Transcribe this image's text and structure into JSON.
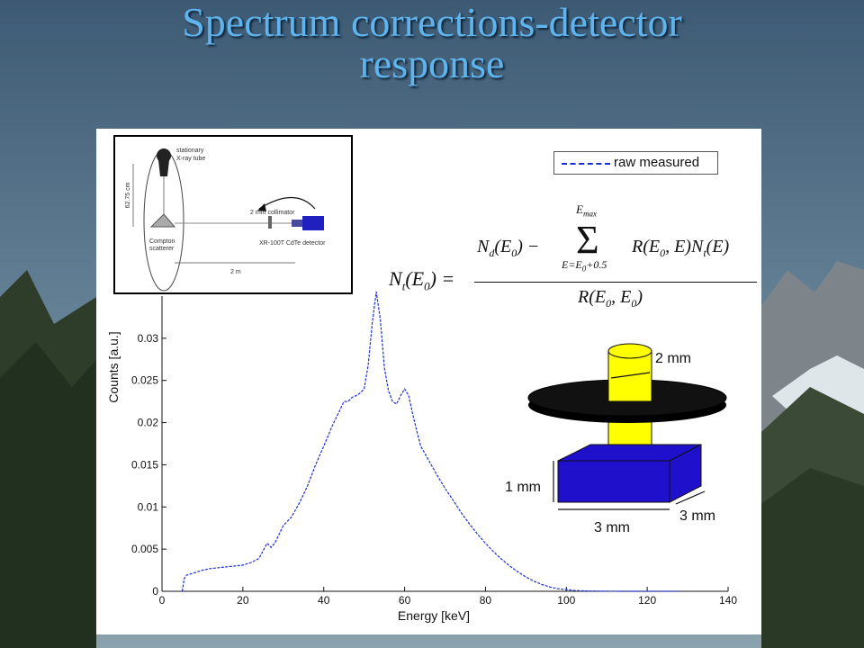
{
  "slide": {
    "title_line1": "Spectrum corrections-detector",
    "title_line2": "response"
  },
  "chart_data": {
    "type": "line",
    "xlabel": "Energy [keV]",
    "ylabel": "Counts [a.u.]",
    "xlim": [
      0,
      140
    ],
    "ylim": [
      0,
      0.035
    ],
    "xticks": [
      0,
      20,
      40,
      60,
      80,
      100,
      120,
      140
    ],
    "yticks": [
      0,
      0.005,
      0.01,
      0.015,
      0.02,
      0.025,
      0.03
    ],
    "legend": {
      "position": "top-right",
      "entries": [
        "raw measured"
      ]
    },
    "series": [
      {
        "name": "raw measured",
        "color": "#1a2fd6",
        "style": "dashed",
        "x": [
          5,
          5.5,
          6,
          8,
          10,
          12,
          14,
          16,
          18,
          20,
          22,
          24,
          25,
          26,
          27,
          28,
          29,
          30,
          32,
          34,
          36,
          38,
          40,
          42,
          44,
          45,
          46,
          47,
          48,
          49,
          50,
          51,
          52,
          53,
          54,
          55,
          56,
          57,
          58,
          59,
          60,
          61,
          62,
          63,
          64,
          66,
          68,
          70,
          72,
          74,
          76,
          78,
          80,
          82,
          84,
          86,
          88,
          90,
          92,
          94,
          96,
          98,
          100,
          102,
          104,
          106,
          108,
          110,
          115,
          120,
          128
        ],
        "y": [
          0,
          0.0015,
          0.0019,
          0.0022,
          0.0025,
          0.0027,
          0.0028,
          0.0029,
          0.003,
          0.0031,
          0.0034,
          0.0039,
          0.0048,
          0.0057,
          0.0052,
          0.0058,
          0.0068,
          0.0078,
          0.0088,
          0.0105,
          0.0125,
          0.015,
          0.0172,
          0.0195,
          0.0215,
          0.0225,
          0.0225,
          0.023,
          0.0232,
          0.0235,
          0.024,
          0.0268,
          0.0318,
          0.0355,
          0.0322,
          0.0265,
          0.0238,
          0.0225,
          0.0222,
          0.0232,
          0.024,
          0.0232,
          0.021,
          0.019,
          0.0172,
          0.0155,
          0.0138,
          0.0122,
          0.0108,
          0.0093,
          0.008,
          0.0068,
          0.0057,
          0.0047,
          0.0038,
          0.003,
          0.0023,
          0.0017,
          0.0012,
          0.0008,
          0.0005,
          0.0003,
          0.0002,
          0.0001,
          5e-05,
          3e-05,
          2e-05,
          1e-05,
          0,
          0,
          0
        ]
      }
    ]
  },
  "inset": {
    "labels": {
      "source_line1": "stationary",
      "source_line2": "X-ray tube",
      "height": "62.75 cm",
      "collimator": "2 mm collimator",
      "scatterer_line1": "Compton",
      "scatterer_line2": "scatterer",
      "detector": "XR-100T CdTe detector",
      "distance": "2 m"
    }
  },
  "formula": {
    "lhs": "N",
    "lhs_sub": "t",
    "lhs_arg": "(E",
    "lhs_arg_sub": "0",
    "lhs_arg_end": ") =",
    "num_first": "N",
    "num_first_sub": "d",
    "num_first_arg": "(E",
    "num_first_arg_sub": "0",
    "num_first_arg_end": ") −",
    "sum_symbol": "Σ",
    "sum_upper": "E",
    "sum_upper_sub": "max",
    "sum_lower": "E=E",
    "sum_lower_sub": "0",
    "sum_lower_end": "+0.5",
    "num_term": "R(E",
    "num_term_sub": "0",
    "num_term_mid": ", E)N",
    "num_term_sub2": "t",
    "num_term_end": "(E)",
    "den": "R(E",
    "den_sub": "0",
    "den_mid": ", E",
    "den_sub2": "0",
    "den_end": ")"
  },
  "detector": {
    "aperture_label": "2 mm",
    "thickness_label": "1 mm",
    "width_label": "3 mm",
    "depth_label": "3 mm",
    "colors": {
      "crystal": "#1f10cc",
      "collimator": "#ffff00",
      "disk": "#000000"
    }
  }
}
